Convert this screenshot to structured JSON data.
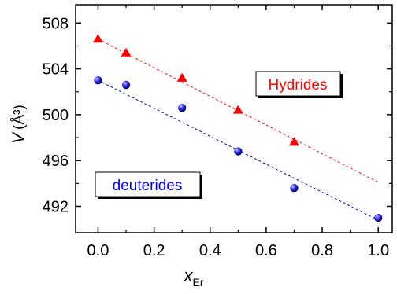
{
  "chart_data": {
    "type": "scatter",
    "title": "",
    "xlabel": {
      "main": "x",
      "sub": "Er"
    },
    "ylabel": {
      "main": "V",
      "unit": "(Å³)"
    },
    "xlim": [
      -0.08,
      1.05
    ],
    "ylim": [
      489.7,
      509.6
    ],
    "xticks": [
      0.0,
      0.2,
      0.4,
      0.6,
      0.8,
      1.0
    ],
    "xtick_labels": [
      "0.0",
      "0.2",
      "0.4",
      "0.6",
      "0.8",
      "1.0"
    ],
    "yticks": [
      492,
      496,
      500,
      504,
      508
    ],
    "ytick_labels": [
      "492",
      "496",
      "500",
      "504",
      "508"
    ],
    "grid": false,
    "series": [
      {
        "name": "Hydrides",
        "marker": "triangle",
        "color": "#ff0000",
        "x": [
          0.0,
          0.1,
          0.3,
          0.5,
          0.7
        ],
        "y": [
          506.6,
          505.4,
          503.2,
          500.4,
          497.6
        ],
        "fit": {
          "x": [
            0.0,
            1.0
          ],
          "y": [
            506.6,
            494.1
          ]
        }
      },
      {
        "name": "deuterides",
        "marker": "circle",
        "color": "#0000cc",
        "x": [
          0.0,
          0.1,
          0.3,
          0.5,
          0.7,
          1.0
        ],
        "y": [
          503.0,
          502.6,
          500.6,
          496.8,
          493.6,
          491.0
        ],
        "fit": {
          "x": [
            0.0,
            1.0
          ],
          "y": [
            503.0,
            490.8
          ]
        }
      }
    ],
    "annotations": [
      {
        "text": "Hydrides",
        "color": "#ff0000"
      },
      {
        "text": "deuterides",
        "color": "#0000ff"
      }
    ]
  }
}
